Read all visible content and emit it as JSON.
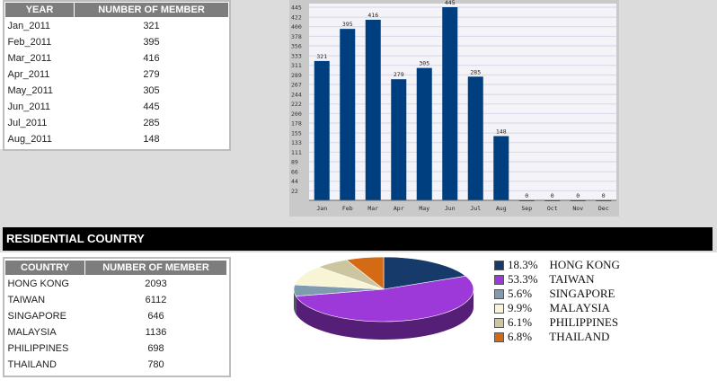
{
  "monthly_table": {
    "headers": [
      "YEAR",
      "NUMBER OF MEMBER"
    ],
    "rows": [
      [
        "Jan_2011",
        "321"
      ],
      [
        "Feb_2011",
        "395"
      ],
      [
        "Mar_2011",
        "416"
      ],
      [
        "Apr_2011",
        "279"
      ],
      [
        "May_2011",
        "305"
      ],
      [
        "Jun_2011",
        "445"
      ],
      [
        "Jul_2011",
        "285"
      ],
      [
        "Aug_2011",
        "148"
      ]
    ]
  },
  "section": {
    "title": "RESIDENTIAL COUNTRY"
  },
  "country_table": {
    "headers": [
      "COUNTRY",
      "NUMBER OF MEMBER"
    ],
    "rows": [
      [
        "HONG KONG",
        "2093"
      ],
      [
        "TAIWAN",
        "6112"
      ],
      [
        "SINGAPORE",
        "646"
      ],
      [
        "MALAYSIA",
        "1136"
      ],
      [
        "PHILIPPINES",
        "698"
      ],
      [
        "THAILAND",
        "780"
      ]
    ]
  },
  "chart_data": [
    {
      "type": "bar",
      "categories": [
        "Jan",
        "Feb",
        "Mar",
        "Apr",
        "May",
        "Jun",
        "Jul",
        "Aug",
        "Sep",
        "Oct",
        "Nov",
        "Dec"
      ],
      "values": [
        321,
        395,
        416,
        279,
        305,
        445,
        285,
        148,
        0,
        0,
        0,
        0
      ],
      "y_ticks": [
        22,
        44,
        66,
        89,
        111,
        133,
        155,
        178,
        200,
        222,
        244,
        267,
        289,
        311,
        333,
        356,
        378,
        400,
        422,
        445
      ],
      "ylim": [
        0,
        445
      ],
      "bar_color": "#003f7f",
      "grid": true,
      "title": "",
      "xlabel": "",
      "ylabel": ""
    },
    {
      "type": "pie",
      "labels": [
        "HONG KONG",
        "TAIWAN",
        "SINGAPORE",
        "MALAYSIA",
        "PHILIPPINES",
        "THAILAND"
      ],
      "percent_labels": [
        "18.3%",
        "53.3%",
        "5.6%",
        "9.9%",
        "6.1%",
        "6.8%"
      ],
      "values": [
        18.3,
        53.3,
        5.6,
        9.9,
        6.1,
        6.8
      ],
      "colors": [
        "#163a6a",
        "#9c39d8",
        "#7e9bb0",
        "#f8f5d6",
        "#cbc6a0",
        "#d46a14"
      ],
      "legend_position": "right"
    }
  ]
}
